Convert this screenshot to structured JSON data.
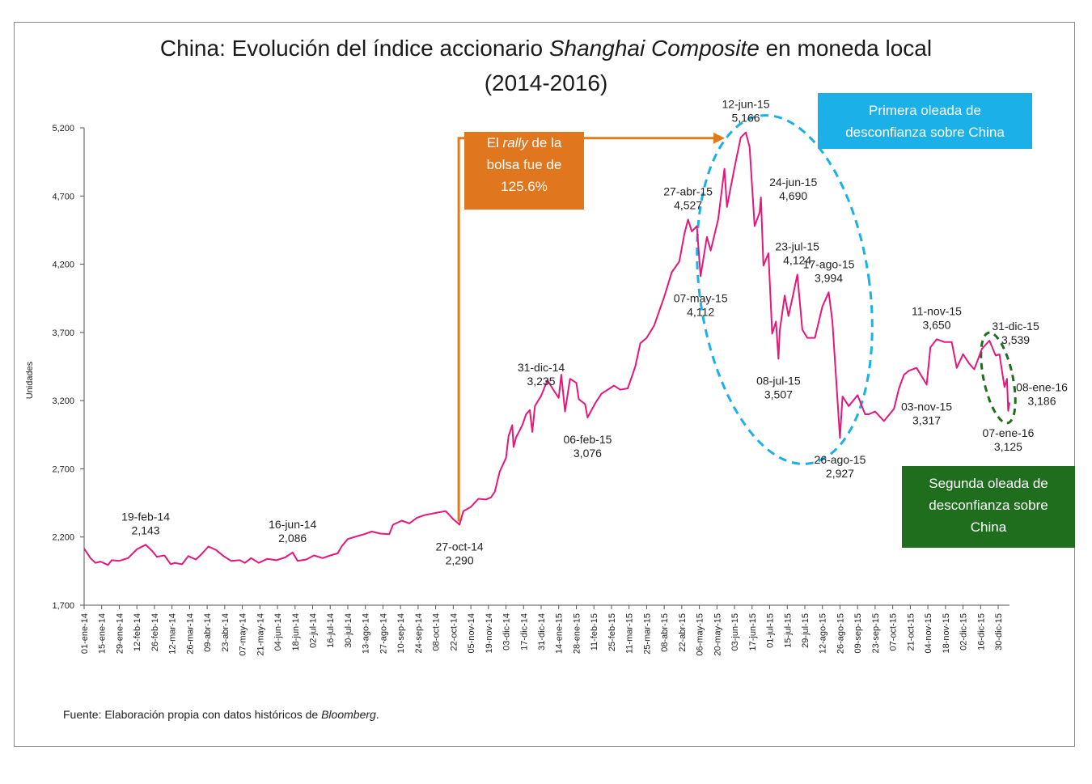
{
  "chart_data": {
    "type": "line",
    "title_parts": [
      "China: Evolución del índice accionario ",
      "Shanghai Composite",
      " en moneda local"
    ],
    "subtitle": "(2014-2016)",
    "xlabel": "",
    "ylabel": "Unidades",
    "ylim": [
      1700,
      5200
    ],
    "yticks": [
      "1,700",
      "2,200",
      "2,700",
      "3,200",
      "3,700",
      "4,200",
      "4,700",
      "5,200"
    ],
    "ytick_values": [
      1700,
      2200,
      2700,
      3200,
      3700,
      4200,
      4700,
      5200
    ],
    "xlim": [
      "2014-01-01",
      "2016-01-08"
    ],
    "grid": false,
    "line_color": "#e6177a",
    "xticks": [
      "01-ene-14",
      "15-ene-14",
      "29-ene-14",
      "12-feb-14",
      "26-feb-14",
      "12-mar-14",
      "26-mar-14",
      "09-abr-14",
      "23-abr-14",
      "07-may-14",
      "21-may-14",
      "04-jun-14",
      "18-jun-14",
      "02-jul-14",
      "16-jul-14",
      "30-jul-14",
      "13-ago-14",
      "27-ago-14",
      "10-sep-14",
      "24-sep-14",
      "08-oct-14",
      "22-oct-14",
      "05-nov-14",
      "19-nov-14",
      "03-dic-14",
      "17-dic-14",
      "31-dic-14",
      "14-ene-15",
      "28-ene-15",
      "11-feb-15",
      "25-feb-15",
      "11-mar-15",
      "25-mar-15",
      "08-abr-15",
      "22-abr-15",
      "06-may-15",
      "20-may-15",
      "03-jun-15",
      "17-jun-15",
      "01-jul-15",
      "15-jul-15",
      "29-jul-15",
      "12-ago-15",
      "26-ago-15",
      "09-sep-15",
      "23-sep-15",
      "07-oct-15",
      "21-oct-15",
      "04-nov-15",
      "18-nov-15",
      "02-dic-15",
      "16-dic-15",
      "30-dic-15"
    ],
    "series": [
      {
        "values": [
          [
            "2014-01-01",
            2115
          ],
          [
            "2014-01-06",
            2045
          ],
          [
            "2014-01-10",
            2010
          ],
          [
            "2014-01-14",
            2020
          ],
          [
            "2014-01-20",
            1995
          ],
          [
            "2014-01-23",
            2030
          ],
          [
            "2014-01-29",
            2025
          ],
          [
            "2014-02-05",
            2045
          ],
          [
            "2014-02-12",
            2110
          ],
          [
            "2014-02-19",
            2143
          ],
          [
            "2014-02-24",
            2100
          ],
          [
            "2014-02-28",
            2055
          ],
          [
            "2014-03-06",
            2065
          ],
          [
            "2014-03-11",
            2000
          ],
          [
            "2014-03-14",
            2010
          ],
          [
            "2014-03-20",
            2000
          ],
          [
            "2014-03-25",
            2060
          ],
          [
            "2014-03-31",
            2035
          ],
          [
            "2014-04-04",
            2070
          ],
          [
            "2014-04-10",
            2130
          ],
          [
            "2014-04-16",
            2105
          ],
          [
            "2014-04-22",
            2060
          ],
          [
            "2014-04-28",
            2025
          ],
          [
            "2014-05-05",
            2030
          ],
          [
            "2014-05-09",
            2010
          ],
          [
            "2014-05-14",
            2045
          ],
          [
            "2014-05-20",
            2010
          ],
          [
            "2014-05-27",
            2040
          ],
          [
            "2014-06-03",
            2030
          ],
          [
            "2014-06-10",
            2050
          ],
          [
            "2014-06-16",
            2086
          ],
          [
            "2014-06-20",
            2025
          ],
          [
            "2014-06-27",
            2035
          ],
          [
            "2014-07-03",
            2065
          ],
          [
            "2014-07-10",
            2045
          ],
          [
            "2014-07-16",
            2065
          ],
          [
            "2014-07-22",
            2080
          ],
          [
            "2014-07-25",
            2130
          ],
          [
            "2014-07-30",
            2185
          ],
          [
            "2014-08-06",
            2205
          ],
          [
            "2014-08-12",
            2220
          ],
          [
            "2014-08-18",
            2240
          ],
          [
            "2014-08-25",
            2225
          ],
          [
            "2014-09-01",
            2220
          ],
          [
            "2014-09-04",
            2290
          ],
          [
            "2014-09-11",
            2320
          ],
          [
            "2014-09-17",
            2300
          ],
          [
            "2014-09-23",
            2340
          ],
          [
            "2014-09-29",
            2360
          ],
          [
            "2014-10-10",
            2380
          ],
          [
            "2014-10-16",
            2390
          ],
          [
            "2014-10-22",
            2330
          ],
          [
            "2014-10-27",
            2290
          ],
          [
            "2014-10-30",
            2390
          ],
          [
            "2014-11-05",
            2420
          ],
          [
            "2014-11-11",
            2480
          ],
          [
            "2014-11-17",
            2475
          ],
          [
            "2014-11-21",
            2490
          ],
          [
            "2014-11-24",
            2530
          ],
          [
            "2014-11-28",
            2680
          ],
          [
            "2014-12-03",
            2780
          ],
          [
            "2014-12-05",
            2940
          ],
          [
            "2014-12-08",
            3020
          ],
          [
            "2014-12-09",
            2860
          ],
          [
            "2014-12-11",
            2930
          ],
          [
            "2014-12-16",
            3020
          ],
          [
            "2014-12-19",
            3100
          ],
          [
            "2014-12-22",
            3130
          ],
          [
            "2014-12-24",
            2970
          ],
          [
            "2014-12-26",
            3160
          ],
          [
            "2014-12-31",
            3235
          ],
          [
            "2015-01-05",
            3350
          ],
          [
            "2015-01-09",
            3290
          ],
          [
            "2015-01-14",
            3220
          ],
          [
            "2015-01-16",
            3390
          ],
          [
            "2015-01-19",
            3120
          ],
          [
            "2015-01-23",
            3360
          ],
          [
            "2015-01-28",
            3330
          ],
          [
            "2015-01-30",
            3210
          ],
          [
            "2015-02-04",
            3175
          ],
          [
            "2015-02-06",
            3076
          ],
          [
            "2015-02-12",
            3180
          ],
          [
            "2015-02-17",
            3250
          ],
          [
            "2015-02-27",
            3310
          ],
          [
            "2015-03-04",
            3280
          ],
          [
            "2015-03-10",
            3290
          ],
          [
            "2015-03-16",
            3450
          ],
          [
            "2015-03-20",
            3620
          ],
          [
            "2015-03-25",
            3660
          ],
          [
            "2015-03-31",
            3750
          ],
          [
            "2015-04-08",
            3960
          ],
          [
            "2015-04-14",
            4140
          ],
          [
            "2015-04-20",
            4220
          ],
          [
            "2015-04-24",
            4420
          ],
          [
            "2015-04-27",
            4527
          ],
          [
            "2015-04-30",
            4440
          ],
          [
            "2015-05-04",
            4480
          ],
          [
            "2015-05-06",
            4230
          ],
          [
            "2015-05-07",
            4112
          ],
          [
            "2015-05-12",
            4400
          ],
          [
            "2015-05-15",
            4300
          ],
          [
            "2015-05-21",
            4530
          ],
          [
            "2015-05-26",
            4900
          ],
          [
            "2015-05-28",
            4620
          ],
          [
            "2015-06-03",
            4910
          ],
          [
            "2015-06-08",
            5130
          ],
          [
            "2015-06-12",
            5166
          ],
          [
            "2015-06-15",
            5060
          ],
          [
            "2015-06-19",
            4480
          ],
          [
            "2015-06-23",
            4580
          ],
          [
            "2015-06-24",
            4690
          ],
          [
            "2015-06-26",
            4190
          ],
          [
            "2015-06-30",
            4280
          ],
          [
            "2015-07-03",
            3690
          ],
          [
            "2015-07-06",
            3780
          ],
          [
            "2015-07-08",
            3507
          ],
          [
            "2015-07-09",
            3710
          ],
          [
            "2015-07-13",
            3970
          ],
          [
            "2015-07-16",
            3820
          ],
          [
            "2015-07-20",
            3990
          ],
          [
            "2015-07-23",
            4124
          ],
          [
            "2015-07-27",
            3720
          ],
          [
            "2015-07-31",
            3660
          ],
          [
            "2015-08-06",
            3660
          ],
          [
            "2015-08-12",
            3890
          ],
          [
            "2015-08-17",
            3994
          ],
          [
            "2015-08-20",
            3780
          ],
          [
            "2015-08-24",
            3210
          ],
          [
            "2015-08-26",
            2927
          ],
          [
            "2015-08-28",
            3230
          ],
          [
            "2015-09-02",
            3160
          ],
          [
            "2015-09-09",
            3240
          ],
          [
            "2015-09-15",
            3100
          ],
          [
            "2015-09-18",
            3100
          ],
          [
            "2015-09-23",
            3120
          ],
          [
            "2015-09-30",
            3050
          ],
          [
            "2015-10-08",
            3140
          ],
          [
            "2015-10-12",
            3290
          ],
          [
            "2015-10-16",
            3390
          ],
          [
            "2015-10-20",
            3420
          ],
          [
            "2015-10-26",
            3440
          ],
          [
            "2015-10-30",
            3380
          ],
          [
            "2015-11-03",
            3317
          ],
          [
            "2015-11-06",
            3590
          ],
          [
            "2015-11-11",
            3650
          ],
          [
            "2015-11-17",
            3630
          ],
          [
            "2015-11-23",
            3630
          ],
          [
            "2015-11-27",
            3440
          ],
          [
            "2015-12-02",
            3540
          ],
          [
            "2015-12-07",
            3470
          ],
          [
            "2015-12-11",
            3430
          ],
          [
            "2015-12-17",
            3580
          ],
          [
            "2015-12-23",
            3640
          ],
          [
            "2015-12-28",
            3530
          ],
          [
            "2015-12-31",
            3539
          ],
          [
            "2016-01-04",
            3300
          ],
          [
            "2016-01-06",
            3360
          ],
          [
            "2016-01-07",
            3125
          ],
          [
            "2016-01-08",
            3186
          ]
        ]
      }
    ],
    "annotations": [
      {
        "date": "19-feb-14",
        "value": "2,143",
        "x": "2014-02-19",
        "y": 2143,
        "pos": "above"
      },
      {
        "date": "16-jun-14",
        "value": "2,086",
        "x": "2014-06-16",
        "y": 2086,
        "pos": "above"
      },
      {
        "date": "27-oct-14",
        "value": "2,290",
        "x": "2014-10-27",
        "y": 2290,
        "pos": "below"
      },
      {
        "date": "31-dic-14",
        "value": "3,235",
        "x": "2014-12-31",
        "y": 3235,
        "pos": "above"
      },
      {
        "date": "06-feb-15",
        "value": "3,076",
        "x": "2015-02-06",
        "y": 3076,
        "pos": "below"
      },
      {
        "date": "27-abr-15",
        "value": "4,527",
        "x": "2015-04-27",
        "y": 4527,
        "pos": "above"
      },
      {
        "date": "07-may-15",
        "value": "4,112",
        "x": "2015-05-07",
        "y": 4112,
        "pos": "below"
      },
      {
        "date": "12-jun-15",
        "value": "5,166",
        "x": "2015-06-12",
        "y": 5166,
        "pos": "above"
      },
      {
        "date": "24-jun-15",
        "value": "4,690",
        "x": "2015-06-24",
        "y": 4690,
        "pos": "right"
      },
      {
        "date": "08-jul-15",
        "value": "3,507",
        "x": "2015-07-08",
        "y": 3507,
        "pos": "below"
      },
      {
        "date": "23-jul-15",
        "value": "4,124",
        "x": "2015-07-23",
        "y": 4124,
        "pos": "above"
      },
      {
        "date": "17-ago-15",
        "value": "3,994",
        "x": "2015-08-17",
        "y": 3994,
        "pos": "above"
      },
      {
        "date": "26-ago-15",
        "value": "2,927",
        "x": "2015-08-26",
        "y": 2927,
        "pos": "below"
      },
      {
        "date": "03-nov-15",
        "value": "3,317",
        "x": "2015-11-03",
        "y": 3317,
        "pos": "below"
      },
      {
        "date": "11-nov-15",
        "value": "3,650",
        "x": "2015-11-11",
        "y": 3650,
        "pos": "above"
      },
      {
        "date": "31-dic-15",
        "value": "3,539",
        "x": "2015-12-31",
        "y": 3539,
        "pos": "aboveright"
      },
      {
        "date": "07-ene-16",
        "value": "3,125",
        "x": "2016-01-07",
        "y": 3125,
        "pos": "below"
      },
      {
        "date": "08-ene-16",
        "value": "3,186",
        "x": "2016-01-08",
        "y": 3186,
        "pos": "right"
      }
    ],
    "rally_arrow": {
      "from": "2014-10-27",
      "to": "2015-06-12",
      "color": "#e07a1f"
    }
  },
  "callouts": {
    "rally": {
      "prefix": "El ",
      "italic": "rally",
      "line1_rest": " de la",
      "line2": "bolsa fue de",
      "line3": "125.6%",
      "color": "#e0761e"
    },
    "wave1": {
      "line1": "Primera oleada de",
      "line2": "desconfianza sobre China",
      "color": "#1bb0e8"
    },
    "wave2": {
      "line1": "Segunda oleada de",
      "line2": "desconfianza sobre",
      "line3": "China",
      "color": "#1e6e1e"
    }
  },
  "source": {
    "prefix": "Fuente: Elaboración propia con datos históricos de ",
    "italic": "Bloomberg",
    "suffix": "."
  },
  "colors": {
    "frame": "#8a8a8a",
    "ellipse1": "#1bb0e8",
    "ellipse2": "#1e6e1e"
  }
}
